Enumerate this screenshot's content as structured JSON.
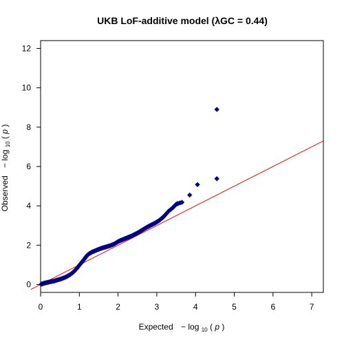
{
  "chart_data": {
    "type": "scatter",
    "title": "UKB LoF-additive model (λGC = 0.44)",
    "xlabel": {
      "prefix": "Expected",
      "minus": "−",
      "log": "log",
      "sub": "10",
      "arg_open": "(",
      "var": "p",
      "arg_close": ")"
    },
    "ylabel": {
      "prefix": "Observed",
      "minus": "−",
      "log": "log",
      "sub": "10",
      "arg_open": "(",
      "var": "p",
      "arg_close": ")"
    },
    "xlim": [
      0,
      7.3
    ],
    "ylim": [
      -0.4,
      12.4
    ],
    "xticks": [
      0,
      1,
      2,
      3,
      4,
      5,
      6,
      7
    ],
    "yticks": [
      0,
      2,
      4,
      6,
      8,
      10,
      12
    ],
    "grid": false,
    "reference_line": {
      "slope": 1.0,
      "intercept": 0.0,
      "color": "#ff0000"
    },
    "point_color": "#00008b",
    "marker": "diamond",
    "series": [
      {
        "x": [
          0.02,
          0.05,
          0.08,
          0.12,
          0.16,
          0.2,
          0.25,
          0.3,
          0.35,
          0.4,
          0.45,
          0.5,
          0.55,
          0.6,
          0.65,
          0.7,
          0.75,
          0.8,
          0.85,
          0.9,
          0.95,
          1.0,
          1.05,
          1.1,
          1.15,
          1.2,
          1.25,
          1.3,
          1.35,
          1.4,
          1.45,
          1.5,
          1.55,
          1.6,
          1.65,
          1.7,
          1.75,
          1.8,
          1.85,
          1.9,
          1.95,
          2.0,
          2.05,
          2.1,
          2.15,
          2.2,
          2.25,
          2.3,
          2.35,
          2.4,
          2.45,
          2.5,
          2.55,
          2.6,
          2.65,
          2.7,
          2.75,
          2.8,
          2.85,
          2.9,
          2.95,
          3.0,
          3.05,
          3.1,
          3.15,
          3.2,
          3.3,
          3.4,
          3.45,
          3.5,
          3.55,
          3.65,
          3.85,
          4.05,
          4.55
        ],
        "y": [
          0.02,
          0.04,
          0.06,
          0.08,
          0.1,
          0.12,
          0.14,
          0.16,
          0.18,
          0.21,
          0.24,
          0.27,
          0.3,
          0.34,
          0.38,
          0.43,
          0.49,
          0.56,
          0.64,
          0.74,
          0.85,
          0.98,
          1.1,
          1.22,
          1.35,
          1.48,
          1.56,
          1.62,
          1.67,
          1.71,
          1.75,
          1.79,
          1.83,
          1.86,
          1.89,
          1.92,
          1.95,
          1.98,
          2.02,
          2.06,
          2.12,
          2.18,
          2.23,
          2.27,
          2.31,
          2.35,
          2.39,
          2.43,
          2.47,
          2.52,
          2.57,
          2.62,
          2.68,
          2.74,
          2.8,
          2.86,
          2.92,
          2.97,
          3.02,
          3.07,
          3.12,
          3.18,
          3.24,
          3.32,
          3.4,
          3.5,
          3.72,
          3.88,
          3.98,
          4.08,
          4.12,
          4.18,
          4.55,
          5.08,
          5.38
        ]
      }
    ],
    "outlier": {
      "x": 4.55,
      "y": 8.9
    }
  }
}
